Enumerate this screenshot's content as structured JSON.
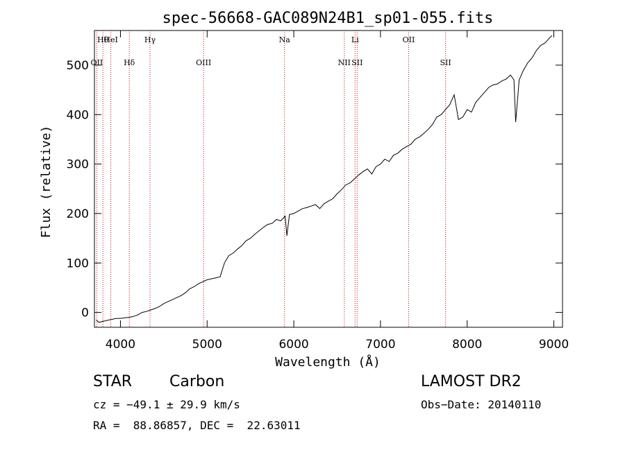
{
  "chart_data": {
    "type": "line",
    "title": "spec-56668-GAC089N24B1_sp01-055.fits",
    "xlabel": "Wavelength (Å)",
    "ylabel": "Flux (relative)",
    "xlim": [
      3700,
      9100
    ],
    "ylim": [
      -30,
      570
    ],
    "xticks": [
      4000,
      5000,
      6000,
      7000,
      8000,
      9000
    ],
    "yticks": [
      0,
      100,
      200,
      300,
      400,
      500
    ],
    "line_color": "#000000",
    "marker_color": "#cc0000",
    "series": [
      {
        "x": [
          3720,
          3750,
          3800,
          3850,
          3900,
          3950,
          4000,
          4050,
          4100,
          4150,
          4200,
          4250,
          4300,
          4350,
          4400,
          4450,
          4500,
          4550,
          4600,
          4650,
          4700,
          4750,
          4800,
          4850,
          4900,
          4950,
          5000,
          5050,
          5100,
          5150,
          5200,
          5250,
          5300,
          5350,
          5400,
          5450,
          5500,
          5550,
          5600,
          5650,
          5700,
          5750,
          5800,
          5850,
          5900,
          5920,
          5950,
          6000,
          6050,
          6100,
          6150,
          6200,
          6250,
          6300,
          6350,
          6400,
          6450,
          6500,
          6550,
          6600,
          6650,
          6700,
          6750,
          6800,
          6850,
          6900,
          6950,
          7000,
          7050,
          7100,
          7150,
          7200,
          7250,
          7300,
          7350,
          7400,
          7450,
          7500,
          7550,
          7600,
          7650,
          7700,
          7750,
          7800,
          7850,
          7900,
          7950,
          8000,
          8050,
          8100,
          8150,
          8200,
          8250,
          8300,
          8350,
          8400,
          8450,
          8500,
          8540,
          8560,
          8600,
          8650,
          8700,
          8750,
          8800,
          8850,
          8900,
          8950,
          8980
        ],
        "y": [
          -15,
          -20,
          -18,
          -16,
          -14,
          -12,
          -12,
          -11,
          -10,
          -8,
          -5,
          0,
          2,
          5,
          8,
          12,
          18,
          22,
          26,
          30,
          34,
          40,
          48,
          52,
          58,
          62,
          66,
          68,
          70,
          72,
          100,
          115,
          120,
          128,
          135,
          145,
          150,
          158,
          165,
          172,
          178,
          180,
          188,
          185,
          195,
          155,
          198,
          200,
          205,
          210,
          212,
          215,
          218,
          210,
          220,
          225,
          230,
          240,
          248,
          258,
          262,
          270,
          278,
          285,
          290,
          280,
          295,
          300,
          310,
          305,
          318,
          322,
          330,
          335,
          340,
          350,
          355,
          362,
          370,
          380,
          395,
          400,
          410,
          420,
          440,
          390,
          395,
          410,
          405,
          425,
          435,
          445,
          455,
          460,
          462,
          468,
          472,
          480,
          470,
          385,
          470,
          490,
          505,
          515,
          530,
          540,
          545,
          555,
          560
        ]
      }
    ],
    "markers": [
      {
        "wl": 3797,
        "label": "Hθ"
      },
      {
        "wl": 3727,
        "label": "OII"
      },
      {
        "wl": 3889,
        "label": "HeI"
      },
      {
        "wl": 4102,
        "label": "Hδ"
      },
      {
        "wl": 4341,
        "label": "Hγ"
      },
      {
        "wl": 4959,
        "label": "OIII"
      },
      {
        "wl": 5893,
        "label": "Na"
      },
      {
        "wl": 6583,
        "label": "NII"
      },
      {
        "wl": 6707,
        "label": "Li"
      },
      {
        "wl": 6731,
        "label": "SII"
      },
      {
        "wl": 7325,
        "label": "OII"
      },
      {
        "wl": 7751,
        "label": "SII"
      }
    ]
  },
  "info": {
    "class_label": "STAR",
    "subclass_label": "Carbon",
    "cz_text": "cz = −49.1 ± 29.9 km/s",
    "coords_text": "RA =  88.86857, DEC =  22.63011",
    "survey_label": "LAMOST DR2",
    "obs_date_text": "Obs−Date: 20140110"
  }
}
